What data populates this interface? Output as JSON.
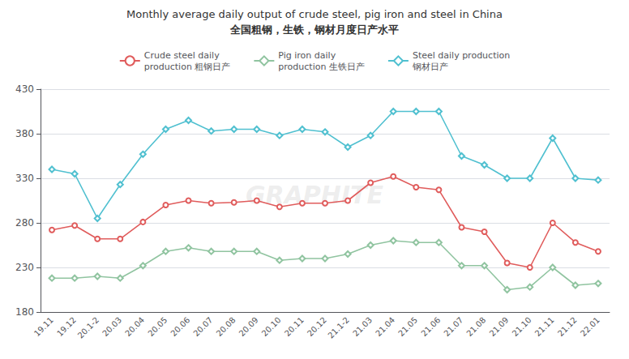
{
  "chart_data": {
    "type": "line",
    "title": "Monthly average daily output of crude steel, pig iron and steel in China",
    "subtitle": "全国粗钢，生铁，钢材月度日产水平",
    "annotations": [
      "GRAPHITE"
    ],
    "categories": [
      "19.11",
      "19.12",
      "20.1-2",
      "20.03",
      "20.04",
      "20.05",
      "20.06",
      "20.07",
      "20.08",
      "20.09",
      "20.10",
      "20.11",
      "20.12",
      "21.1-2",
      "21.03",
      "21.04",
      "21.05",
      "21.06",
      "21.07",
      "21.08",
      "21.09",
      "21.10",
      "21.11",
      "21.12",
      "22.01"
    ],
    "series": [
      {
        "name": "Crude steel daily\nproduction 粗钢日产",
        "color": "#e05c5c",
        "marker": "circle",
        "values": [
          272,
          277,
          262,
          262,
          281,
          300,
          305,
          302,
          303,
          305,
          298,
          302,
          302,
          305,
          325,
          332,
          320,
          317,
          275,
          270,
          235,
          230,
          280,
          258,
          248
        ]
      },
      {
        "name": "Pig iron daily\nproduction 生铁日产",
        "color": "#90c4a0",
        "marker": "diamond",
        "values": [
          218,
          218,
          220,
          218,
          232,
          248,
          252,
          248,
          248,
          248,
          238,
          240,
          240,
          245,
          255,
          260,
          258,
          258,
          232,
          232,
          205,
          208,
          230,
          210,
          212
        ]
      },
      {
        "name": "Steel daily production\n钢材日产",
        "color": "#50c0d0",
        "marker": "diamond",
        "values": [
          340,
          335,
          285,
          323,
          357,
          385,
          395,
          383,
          385,
          385,
          378,
          385,
          382,
          365,
          378,
          405,
          405,
          405,
          355,
          345,
          330,
          330,
          375,
          330,
          328
        ]
      }
    ],
    "ylim": [
      180,
      430
    ],
    "yticks": [
      180,
      230,
      280,
      330,
      380,
      430
    ],
    "grid": true,
    "legend": "top"
  }
}
